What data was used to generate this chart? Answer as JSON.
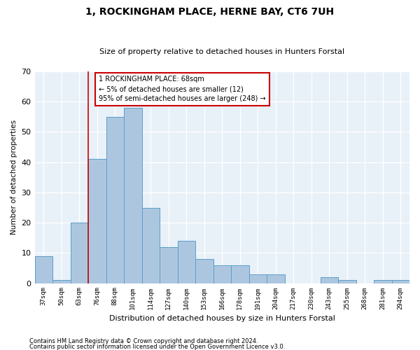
{
  "title1": "1, ROCKINGHAM PLACE, HERNE BAY, CT6 7UH",
  "title2": "Size of property relative to detached houses in Hunters Forstal",
  "xlabel": "Distribution of detached houses by size in Hunters Forstal",
  "ylabel": "Number of detached properties",
  "categories": [
    "37sqm",
    "50sqm",
    "63sqm",
    "76sqm",
    "88sqm",
    "101sqm",
    "114sqm",
    "127sqm",
    "140sqm",
    "153sqm",
    "166sqm",
    "178sqm",
    "191sqm",
    "204sqm",
    "217sqm",
    "230sqm",
    "243sqm",
    "255sqm",
    "268sqm",
    "281sqm",
    "294sqm"
  ],
  "values": [
    9,
    1,
    20,
    41,
    55,
    58,
    25,
    12,
    14,
    8,
    6,
    6,
    3,
    3,
    0,
    0,
    2,
    1,
    0,
    1,
    1
  ],
  "bar_color": "#adc6e0",
  "bar_edge_color": "#5a9ec9",
  "background_color": "#e8f0f8",
  "grid_color": "#ffffff",
  "red_line_x": 2.5,
  "annotation_text": "1 ROCKINGHAM PLACE: 68sqm\n← 5% of detached houses are smaller (12)\n95% of semi-detached houses are larger (248) →",
  "annotation_box_color": "#ffffff",
  "annotation_box_edge": "#cc0000",
  "ylim": [
    0,
    70
  ],
  "footnote1": "Contains HM Land Registry data © Crown copyright and database right 2024.",
  "footnote2": "Contains public sector information licensed under the Open Government Licence v3.0."
}
